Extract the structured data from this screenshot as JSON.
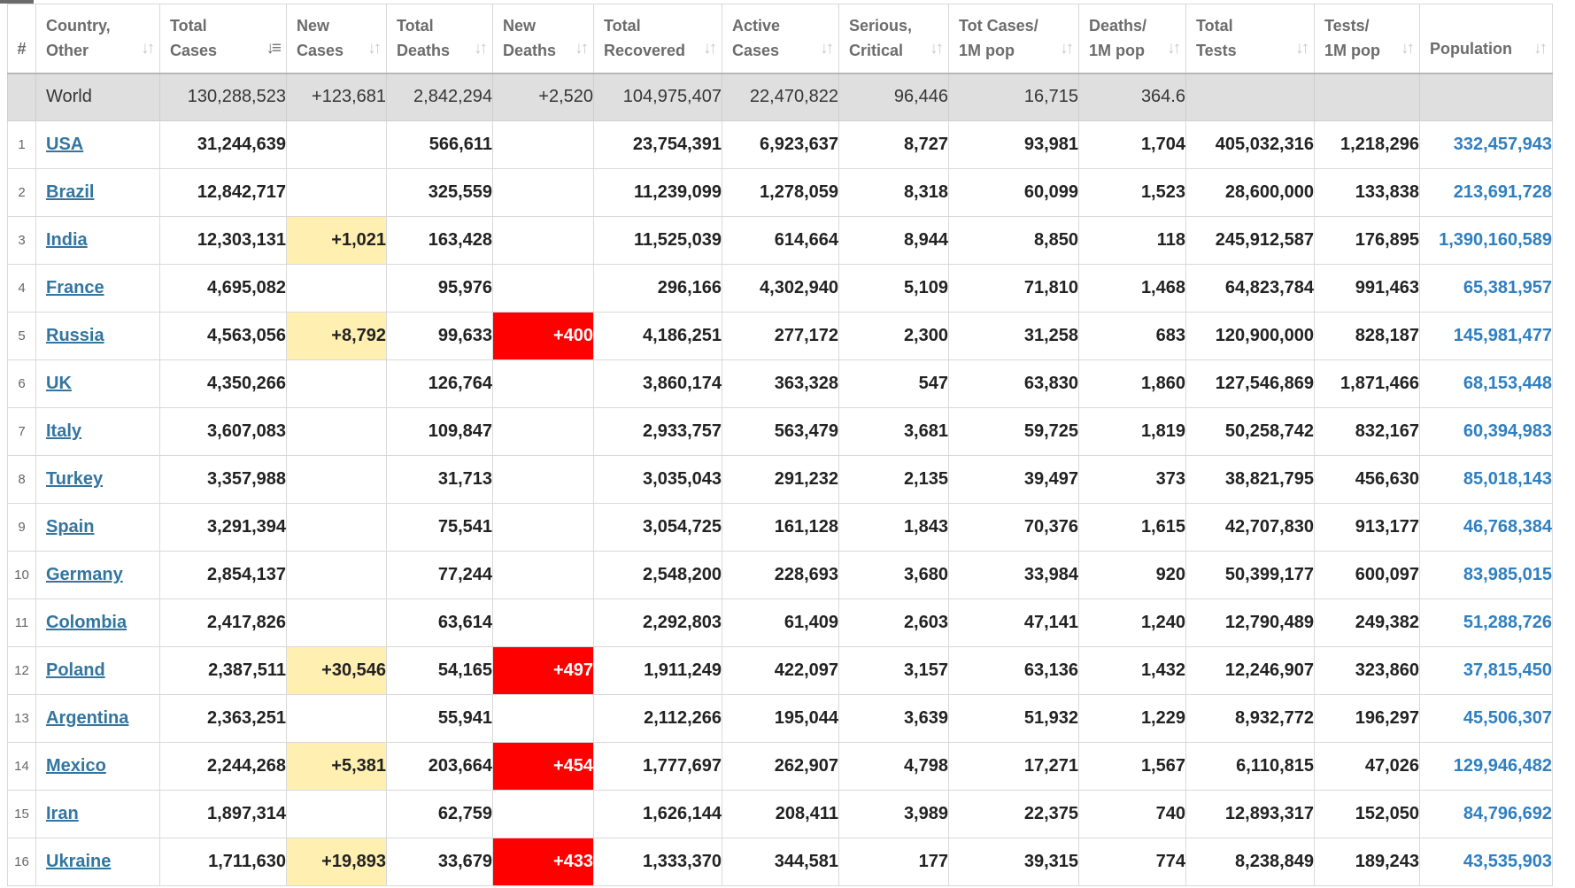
{
  "table": {
    "headers": [
      {
        "key": "rank",
        "label": "#"
      },
      {
        "key": "country",
        "label": "Country,\nOther"
      },
      {
        "key": "total_cases",
        "label": "Total\nCases"
      },
      {
        "key": "new_cases",
        "label": "New\nCases"
      },
      {
        "key": "total_deaths",
        "label": "Total\nDeaths"
      },
      {
        "key": "new_deaths",
        "label": "New\nDeaths"
      },
      {
        "key": "total_recovered",
        "label": "Total\nRecovered"
      },
      {
        "key": "active_cases",
        "label": "Active\nCases"
      },
      {
        "key": "serious_critical",
        "label": "Serious,\nCritical"
      },
      {
        "key": "tot_cases_1m",
        "label": "Tot Cases/\n1M pop"
      },
      {
        "key": "deaths_1m",
        "label": "Deaths/\n1M pop"
      },
      {
        "key": "total_tests",
        "label": "Total\nTests"
      },
      {
        "key": "tests_1m",
        "label": "Tests/\n1M pop"
      },
      {
        "key": "population",
        "label": "Population"
      }
    ],
    "sorted_by": "total_cases",
    "world": {
      "rank": "",
      "country": "World",
      "total_cases": "130,288,523",
      "new_cases": "+123,681",
      "total_deaths": "2,842,294",
      "new_deaths": "+2,520",
      "total_recovered": "104,975,407",
      "active_cases": "22,470,822",
      "serious_critical": "96,446",
      "tot_cases_1m": "16,715",
      "deaths_1m": "364.6",
      "total_tests": "",
      "tests_1m": "",
      "population": ""
    },
    "rows": [
      {
        "rank": "1",
        "country": "USA",
        "total_cases": "31,244,639",
        "new_cases": "",
        "total_deaths": "566,611",
        "new_deaths": "",
        "total_recovered": "23,754,391",
        "active_cases": "6,923,637",
        "serious_critical": "8,727",
        "tot_cases_1m": "93,981",
        "deaths_1m": "1,704",
        "total_tests": "405,032,316",
        "tests_1m": "1,218,296",
        "population": "332,457,943"
      },
      {
        "rank": "2",
        "country": "Brazil",
        "total_cases": "12,842,717",
        "new_cases": "",
        "total_deaths": "325,559",
        "new_deaths": "",
        "total_recovered": "11,239,099",
        "active_cases": "1,278,059",
        "serious_critical": "8,318",
        "tot_cases_1m": "60,099",
        "deaths_1m": "1,523",
        "total_tests": "28,600,000",
        "tests_1m": "133,838",
        "population": "213,691,728"
      },
      {
        "rank": "3",
        "country": "India",
        "total_cases": "12,303,131",
        "new_cases": "+1,021",
        "total_deaths": "163,428",
        "new_deaths": "",
        "total_recovered": "11,525,039",
        "active_cases": "614,664",
        "serious_critical": "8,944",
        "tot_cases_1m": "8,850",
        "deaths_1m": "118",
        "total_tests": "245,912,587",
        "tests_1m": "176,895",
        "population": "1,390,160,589"
      },
      {
        "rank": "4",
        "country": "France",
        "total_cases": "4,695,082",
        "new_cases": "",
        "total_deaths": "95,976",
        "new_deaths": "",
        "total_recovered": "296,166",
        "active_cases": "4,302,940",
        "serious_critical": "5,109",
        "tot_cases_1m": "71,810",
        "deaths_1m": "1,468",
        "total_tests": "64,823,784",
        "tests_1m": "991,463",
        "population": "65,381,957"
      },
      {
        "rank": "5",
        "country": "Russia",
        "total_cases": "4,563,056",
        "new_cases": "+8,792",
        "total_deaths": "99,633",
        "new_deaths": "+400",
        "total_recovered": "4,186,251",
        "active_cases": "277,172",
        "serious_critical": "2,300",
        "tot_cases_1m": "31,258",
        "deaths_1m": "683",
        "total_tests": "120,900,000",
        "tests_1m": "828,187",
        "population": "145,981,477"
      },
      {
        "rank": "6",
        "country": "UK",
        "total_cases": "4,350,266",
        "new_cases": "",
        "total_deaths": "126,764",
        "new_deaths": "",
        "total_recovered": "3,860,174",
        "active_cases": "363,328",
        "serious_critical": "547",
        "tot_cases_1m": "63,830",
        "deaths_1m": "1,860",
        "total_tests": "127,546,869",
        "tests_1m": "1,871,466",
        "population": "68,153,448"
      },
      {
        "rank": "7",
        "country": "Italy",
        "total_cases": "3,607,083",
        "new_cases": "",
        "total_deaths": "109,847",
        "new_deaths": "",
        "total_recovered": "2,933,757",
        "active_cases": "563,479",
        "serious_critical": "3,681",
        "tot_cases_1m": "59,725",
        "deaths_1m": "1,819",
        "total_tests": "50,258,742",
        "tests_1m": "832,167",
        "population": "60,394,983"
      },
      {
        "rank": "8",
        "country": "Turkey",
        "total_cases": "3,357,988",
        "new_cases": "",
        "total_deaths": "31,713",
        "new_deaths": "",
        "total_recovered": "3,035,043",
        "active_cases": "291,232",
        "serious_critical": "2,135",
        "tot_cases_1m": "39,497",
        "deaths_1m": "373",
        "total_tests": "38,821,795",
        "tests_1m": "456,630",
        "population": "85,018,143"
      },
      {
        "rank": "9",
        "country": "Spain",
        "total_cases": "3,291,394",
        "new_cases": "",
        "total_deaths": "75,541",
        "new_deaths": "",
        "total_recovered": "3,054,725",
        "active_cases": "161,128",
        "serious_critical": "1,843",
        "tot_cases_1m": "70,376",
        "deaths_1m": "1,615",
        "total_tests": "42,707,830",
        "tests_1m": "913,177",
        "population": "46,768,384"
      },
      {
        "rank": "10",
        "country": "Germany",
        "total_cases": "2,854,137",
        "new_cases": "",
        "total_deaths": "77,244",
        "new_deaths": "",
        "total_recovered": "2,548,200",
        "active_cases": "228,693",
        "serious_critical": "3,680",
        "tot_cases_1m": "33,984",
        "deaths_1m": "920",
        "total_tests": "50,399,177",
        "tests_1m": "600,097",
        "population": "83,985,015"
      },
      {
        "rank": "11",
        "country": "Colombia",
        "total_cases": "2,417,826",
        "new_cases": "",
        "total_deaths": "63,614",
        "new_deaths": "",
        "total_recovered": "2,292,803",
        "active_cases": "61,409",
        "serious_critical": "2,603",
        "tot_cases_1m": "47,141",
        "deaths_1m": "1,240",
        "total_tests": "12,790,489",
        "tests_1m": "249,382",
        "population": "51,288,726"
      },
      {
        "rank": "12",
        "country": "Poland",
        "total_cases": "2,387,511",
        "new_cases": "+30,546",
        "total_deaths": "54,165",
        "new_deaths": "+497",
        "total_recovered": "1,911,249",
        "active_cases": "422,097",
        "serious_critical": "3,157",
        "tot_cases_1m": "63,136",
        "deaths_1m": "1,432",
        "total_tests": "12,246,907",
        "tests_1m": "323,860",
        "population": "37,815,450"
      },
      {
        "rank": "13",
        "country": "Argentina",
        "total_cases": "2,363,251",
        "new_cases": "",
        "total_deaths": "55,941",
        "new_deaths": "",
        "total_recovered": "2,112,266",
        "active_cases": "195,044",
        "serious_critical": "3,639",
        "tot_cases_1m": "51,932",
        "deaths_1m": "1,229",
        "total_tests": "8,932,772",
        "tests_1m": "196,297",
        "population": "45,506,307"
      },
      {
        "rank": "14",
        "country": "Mexico",
        "total_cases": "2,244,268",
        "new_cases": "+5,381",
        "total_deaths": "203,664",
        "new_deaths": "+454",
        "total_recovered": "1,777,697",
        "active_cases": "262,907",
        "serious_critical": "4,798",
        "tot_cases_1m": "17,271",
        "deaths_1m": "1,567",
        "total_tests": "6,110,815",
        "tests_1m": "47,026",
        "population": "129,946,482"
      },
      {
        "rank": "15",
        "country": "Iran",
        "total_cases": "1,897,314",
        "new_cases": "",
        "total_deaths": "62,759",
        "new_deaths": "",
        "total_recovered": "1,626,144",
        "active_cases": "208,411",
        "serious_critical": "3,989",
        "tot_cases_1m": "22,375",
        "deaths_1m": "740",
        "total_tests": "12,893,317",
        "tests_1m": "152,050",
        "population": "84,796,692"
      },
      {
        "rank": "16",
        "country": "Ukraine",
        "total_cases": "1,711,630",
        "new_cases": "+19,893",
        "total_deaths": "33,679",
        "new_deaths": "+433",
        "total_recovered": "1,333,370",
        "active_cases": "344,581",
        "serious_critical": "177",
        "tot_cases_1m": "39,315",
        "deaths_1m": "774",
        "total_tests": "8,238,849",
        "tests_1m": "189,243",
        "population": "43,535,903"
      }
    ]
  },
  "colors": {
    "new_cases_highlight": "#fff0b2",
    "new_deaths_highlight": "#ff0000",
    "world_row_background": "#dfdfdf",
    "country_link": "#33759f",
    "population_text": "#2f7fc1"
  },
  "icons": {
    "sort": "sort-arrows-icon",
    "sort_active": "sort-descending-icon"
  }
}
